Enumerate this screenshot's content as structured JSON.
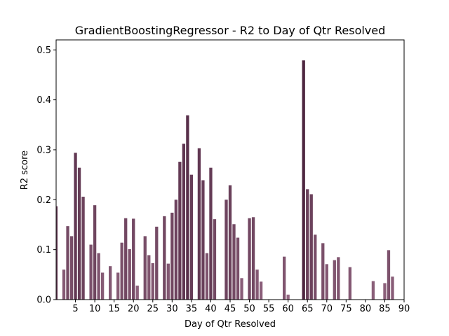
{
  "chart_data": {
    "type": "bar",
    "title": "GradientBoostingRegressor - R2 to Day of Qtr Resolved",
    "xlabel": "Day of Qtr Resolved",
    "ylabel": "R2 score",
    "xlim": [
      0,
      90
    ],
    "ylim": [
      0,
      0.52
    ],
    "x_ticks": [
      5,
      10,
      15,
      20,
      25,
      30,
      35,
      40,
      45,
      50,
      55,
      60,
      65,
      70,
      75,
      80,
      85,
      90
    ],
    "y_ticks": [
      0.0,
      0.1,
      0.2,
      0.3,
      0.4,
      0.5
    ],
    "grid": false,
    "legend": "none",
    "color_dark": "#4e2640",
    "color_light": "#9b6e89",
    "x": [
      0,
      2,
      3,
      4,
      5,
      6,
      7,
      9,
      10,
      11,
      12,
      14,
      16,
      17,
      18,
      19,
      20,
      21,
      23,
      24,
      25,
      26,
      28,
      29,
      30,
      31,
      32,
      33,
      34,
      35,
      37,
      38,
      39,
      40,
      41,
      44,
      45,
      46,
      47,
      48,
      50,
      51,
      52,
      53,
      59,
      60,
      64,
      65,
      66,
      67,
      69,
      70,
      72,
      73,
      76,
      82,
      85,
      86,
      87
    ],
    "values": [
      0.187,
      0.06,
      0.147,
      0.127,
      0.294,
      0.264,
      0.206,
      0.11,
      0.189,
      0.093,
      0.054,
      0.067,
      0.054,
      0.114,
      0.163,
      0.101,
      0.162,
      0.028,
      0.127,
      0.089,
      0.073,
      0.146,
      0.167,
      0.072,
      0.174,
      0.2,
      0.276,
      0.312,
      0.369,
      0.25,
      0.303,
      0.239,
      0.093,
      0.264,
      0.161,
      0.2,
      0.229,
      0.151,
      0.124,
      0.043,
      0.163,
      0.165,
      0.06,
      0.036,
      0.086,
      0.01,
      0.479,
      0.221,
      0.211,
      0.13,
      0.113,
      0.071,
      0.079,
      0.085,
      0.065,
      0.037,
      0.033,
      0.099,
      0.046
    ]
  }
}
